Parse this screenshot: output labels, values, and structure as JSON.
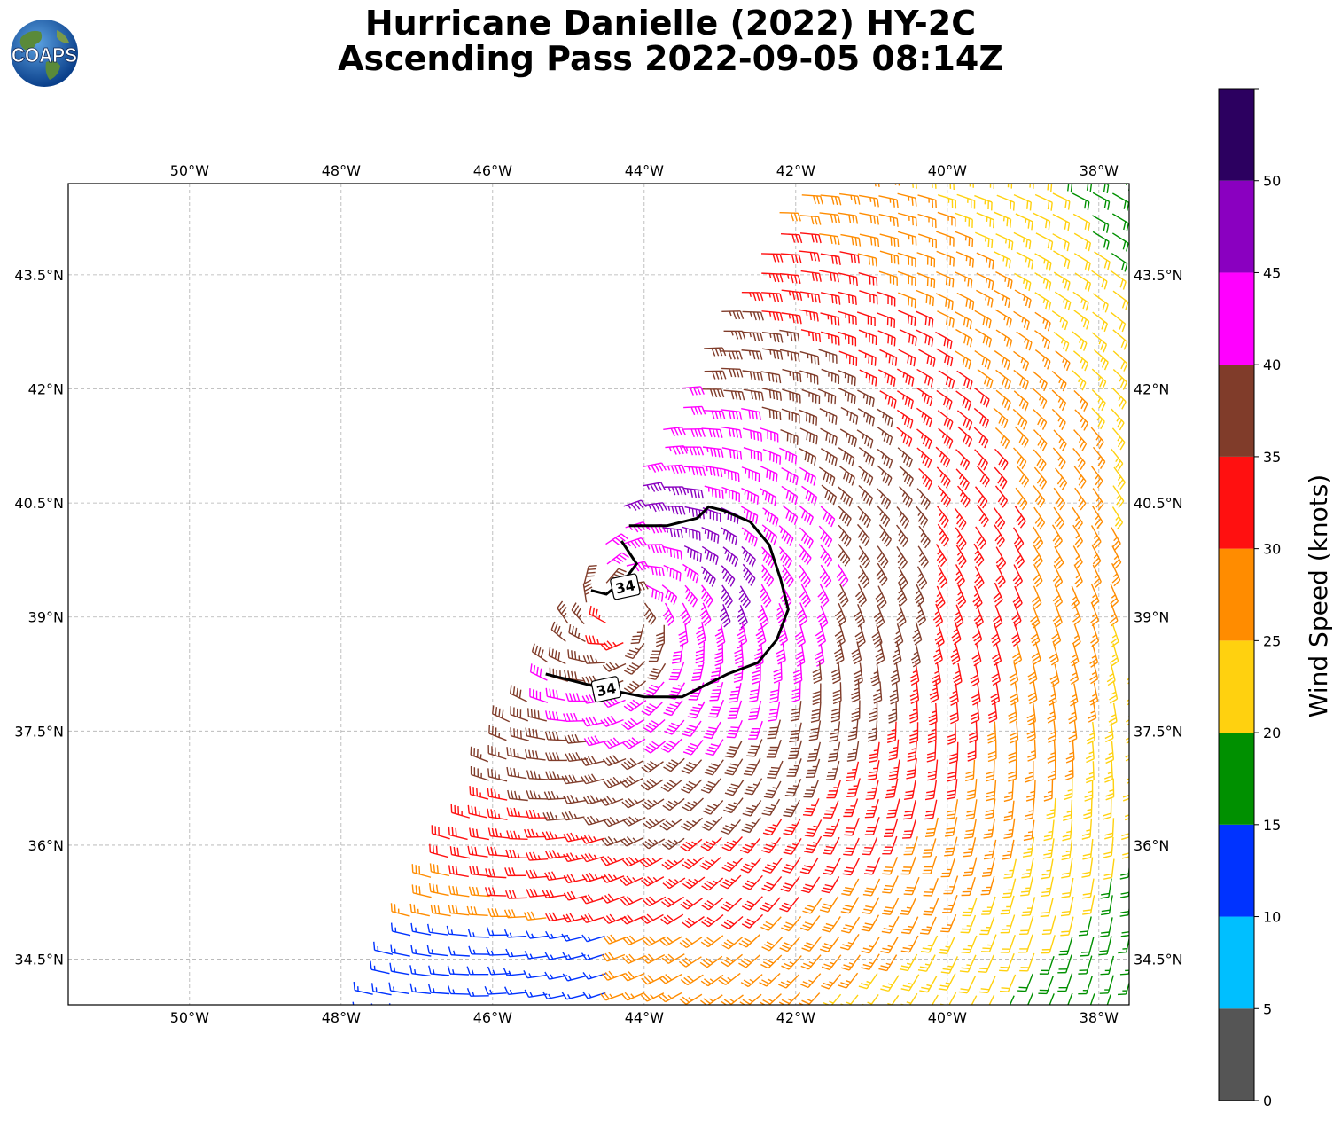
{
  "title": {
    "line1": "Hurricane Danielle (2022) HY-2C",
    "line2": "Ascending Pass 2022-09-05 08:14Z"
  },
  "logo": {
    "text": "COAPS",
    "icon": "globe-logo-icon"
  },
  "map": {
    "lon_range": [
      -51.6,
      -37.6
    ],
    "lat_range": [
      33.9,
      44.7
    ],
    "lon_ticks": [
      {
        "value": -50,
        "label": "50°W"
      },
      {
        "value": -48,
        "label": "48°W"
      },
      {
        "value": -46,
        "label": "46°W"
      },
      {
        "value": -44,
        "label": "44°W"
      },
      {
        "value": -42,
        "label": "42°W"
      },
      {
        "value": -40,
        "label": "40°W"
      },
      {
        "value": -38,
        "label": "38°W"
      }
    ],
    "lat_ticks": [
      {
        "value": 43.5,
        "label": "43.5°N"
      },
      {
        "value": 42.0,
        "label": "42°N"
      },
      {
        "value": 40.5,
        "label": "40.5°N"
      },
      {
        "value": 39.0,
        "label": "39°N"
      },
      {
        "value": 37.5,
        "label": "37.5°N"
      },
      {
        "value": 36.0,
        "label": "36°N"
      },
      {
        "value": 34.5,
        "label": "34.5°N"
      }
    ],
    "storm_center": {
      "lon": -44.3,
      "lat": 39.1
    },
    "swath_edge": [
      {
        "lon": -42.0,
        "lat": 44.9
      },
      {
        "lon": -48.0,
        "lat": 33.4
      }
    ],
    "grid": true
  },
  "contour": {
    "level": 34,
    "label": "34",
    "main_path": [
      [
        -44.2,
        40.2
      ],
      [
        -43.7,
        40.2
      ],
      [
        -43.3,
        40.3
      ],
      [
        -43.15,
        40.45
      ],
      [
        -42.95,
        40.4
      ],
      [
        -42.6,
        40.25
      ],
      [
        -42.35,
        39.95
      ],
      [
        -42.2,
        39.5
      ],
      [
        -42.1,
        39.1
      ],
      [
        -42.25,
        38.7
      ],
      [
        -42.5,
        38.4
      ],
      [
        -42.9,
        38.25
      ],
      [
        -43.2,
        38.1
      ],
      [
        -43.5,
        37.95
      ],
      [
        -44.0,
        37.95
      ],
      [
        -44.5,
        38.05
      ],
      [
        -44.9,
        38.15
      ],
      [
        -45.3,
        38.25
      ]
    ],
    "inner_path": [
      [
        -44.3,
        40.0
      ],
      [
        -44.1,
        39.7
      ],
      [
        -44.25,
        39.5
      ],
      [
        -44.5,
        39.3
      ],
      [
        -44.7,
        39.35
      ]
    ],
    "labels": [
      {
        "text": "34",
        "lon": -44.25,
        "lat": 39.4
      },
      {
        "text": "34",
        "lon": -44.5,
        "lat": 38.05
      }
    ]
  },
  "colorbar": {
    "label": "Wind Speed (knots)",
    "ticks": [
      "0",
      "5",
      "10",
      "15",
      "20",
      "25",
      "30",
      "35",
      "40",
      "45",
      "50"
    ],
    "bins": [
      {
        "min": 0,
        "max": 5,
        "color": "#555555"
      },
      {
        "min": 5,
        "max": 10,
        "color": "#00bfff"
      },
      {
        "min": 10,
        "max": 15,
        "color": "#0033ff"
      },
      {
        "min": 15,
        "max": 20,
        "color": "#009000"
      },
      {
        "min": 20,
        "max": 25,
        "color": "#ffd10f"
      },
      {
        "min": 25,
        "max": 30,
        "color": "#ff8c00"
      },
      {
        "min": 30,
        "max": 35,
        "color": "#ff1010"
      },
      {
        "min": 35,
        "max": 40,
        "color": "#803c2a"
      },
      {
        "min": 40,
        "max": 45,
        "color": "#ff00ff"
      },
      {
        "min": 45,
        "max": 50,
        "color": "#8a00c0"
      },
      {
        "min": 50,
        "max": 55,
        "color": "#2c0060"
      }
    ]
  }
}
